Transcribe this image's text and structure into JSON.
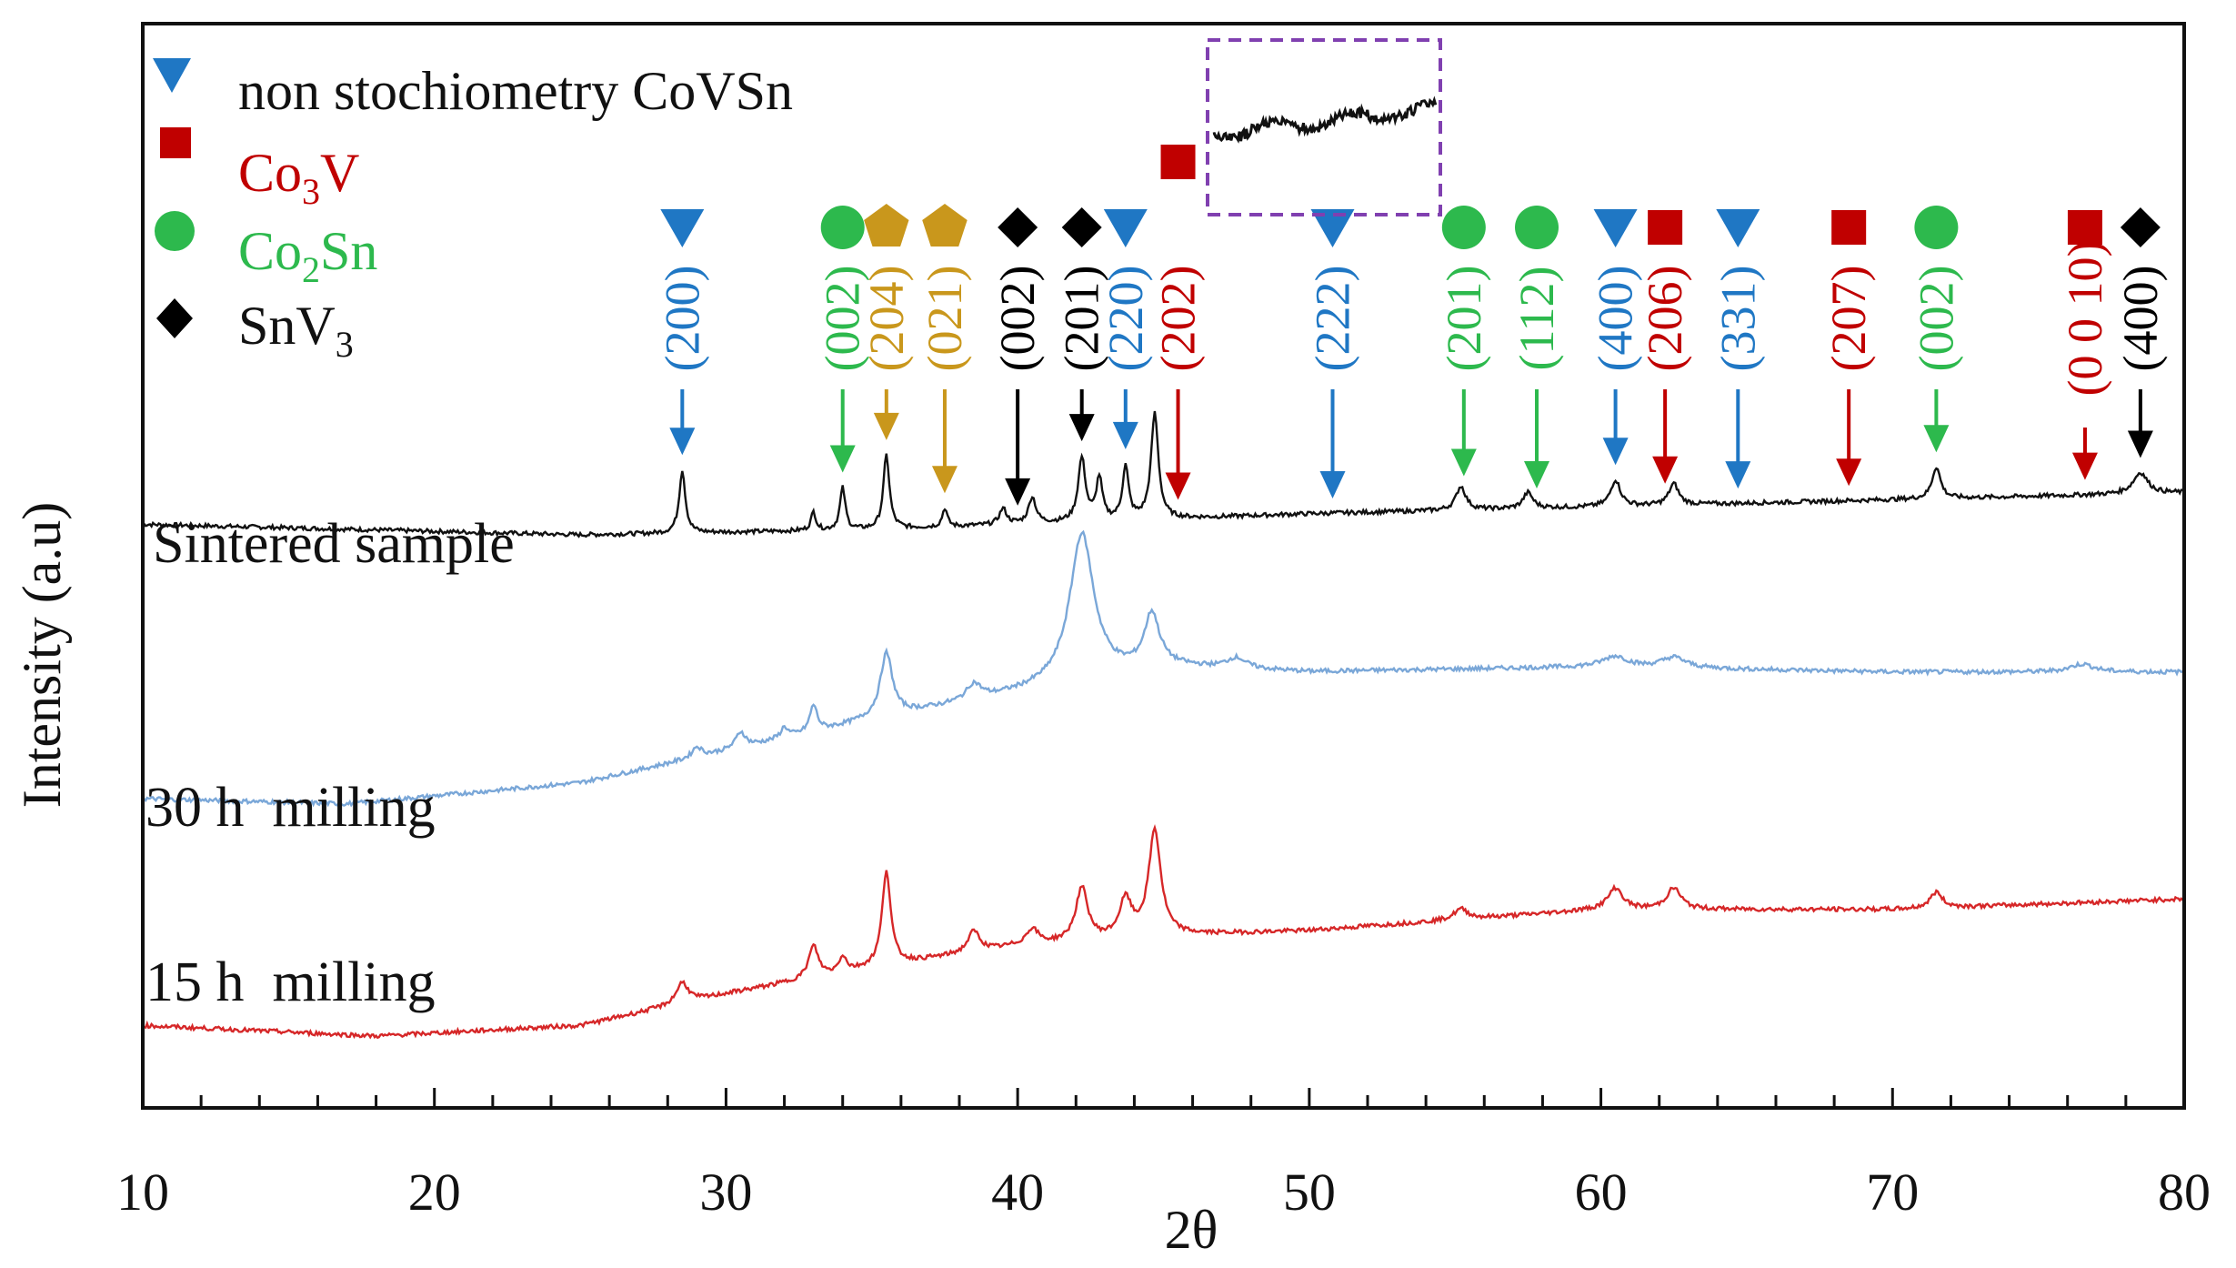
{
  "chart_data": {
    "type": "line",
    "title": "",
    "xlabel": "2θ",
    "ylabel": "Intensity (a.u)",
    "xlim": [
      10,
      80
    ],
    "xticks": [
      "10",
      "20",
      "30",
      "40",
      "50",
      "60",
      "70",
      "80"
    ],
    "grid": false,
    "legend_position": "top-left",
    "legend": [
      {
        "text": "non stochiometry CoVSn",
        "marker": "triangle-down",
        "color": "#1f77c4"
      },
      {
        "text_parts": [
          "Co",
          "3",
          "V"
        ],
        "marker": "square",
        "color": "#c00000"
      },
      {
        "text_parts": [
          "Co",
          "2",
          "Sn"
        ],
        "marker": "circle",
        "color": "#2db94d"
      },
      {
        "text_parts": [
          "SnV",
          "3"
        ],
        "marker": "diamond",
        "color": "#000000"
      }
    ],
    "series": [
      {
        "name": "Sintered sample",
        "color": "#111111",
        "baseline": [
          [
            10,
            0.62
          ],
          [
            25,
            0.6
          ],
          [
            35,
            0.61
          ],
          [
            50,
            0.64
          ],
          [
            80,
            0.68
          ]
        ],
        "peaks": [
          [
            28.5,
            0.12,
            0.25
          ],
          [
            33.0,
            0.035,
            0.2
          ],
          [
            34.0,
            0.08,
            0.22
          ],
          [
            35.5,
            0.14,
            0.25
          ],
          [
            37.5,
            0.035,
            0.2
          ],
          [
            39.5,
            0.03,
            0.3
          ],
          [
            40.5,
            0.05,
            0.3
          ],
          [
            42.2,
            0.12,
            0.3
          ],
          [
            42.8,
            0.08,
            0.25
          ],
          [
            43.7,
            0.1,
            0.25
          ],
          [
            44.7,
            0.2,
            0.3
          ],
          [
            55.2,
            0.045,
            0.4
          ],
          [
            57.5,
            0.03,
            0.4
          ],
          [
            60.5,
            0.05,
            0.4
          ],
          [
            62.5,
            0.04,
            0.4
          ],
          [
            71.5,
            0.06,
            0.35
          ],
          [
            78.5,
            0.04,
            0.6
          ]
        ]
      },
      {
        "name": "30 h  milling",
        "color": "#7aa7d8",
        "baseline": [
          [
            10,
            0.1
          ],
          [
            17,
            0.09
          ],
          [
            25,
            0.13
          ],
          [
            30,
            0.19
          ],
          [
            35,
            0.25
          ],
          [
            40,
            0.3
          ],
          [
            45,
            0.35
          ],
          [
            50,
            0.34
          ],
          [
            60,
            0.35
          ],
          [
            70,
            0.34
          ],
          [
            80,
            0.34
          ]
        ],
        "peaks": [
          [
            29.0,
            0.02,
            0.4
          ],
          [
            30.5,
            0.03,
            0.4
          ],
          [
            32.0,
            0.02,
            0.3
          ],
          [
            33.0,
            0.05,
            0.3
          ],
          [
            35.5,
            0.12,
            0.5
          ],
          [
            38.5,
            0.03,
            0.6
          ],
          [
            42.2,
            0.28,
            1.0
          ],
          [
            44.6,
            0.1,
            0.6
          ],
          [
            47.5,
            0.02,
            0.8
          ],
          [
            60.5,
            0.02,
            1.0
          ],
          [
            62.5,
            0.02,
            1.0
          ],
          [
            76.5,
            0.015,
            1.0
          ]
        ]
      },
      {
        "name": "15 h  milling",
        "color": "#d62728",
        "baseline": [
          [
            10,
            -0.33
          ],
          [
            18,
            -0.35
          ],
          [
            25,
            -0.33
          ],
          [
            30,
            -0.27
          ],
          [
            35,
            -0.22
          ],
          [
            40,
            -0.18
          ],
          [
            45,
            -0.16
          ],
          [
            50,
            -0.15
          ],
          [
            60,
            -0.11
          ],
          [
            70,
            -0.11
          ],
          [
            80,
            -0.09
          ]
        ],
        "peaks": [
          [
            28.5,
            0.04,
            0.5
          ],
          [
            33.0,
            0.06,
            0.4
          ],
          [
            34.0,
            0.03,
            0.3
          ],
          [
            35.5,
            0.18,
            0.35
          ],
          [
            38.5,
            0.04,
            0.5
          ],
          [
            40.5,
            0.03,
            0.5
          ],
          [
            42.2,
            0.1,
            0.5
          ],
          [
            43.7,
            0.07,
            0.5
          ],
          [
            44.7,
            0.2,
            0.5
          ],
          [
            55.2,
            0.02,
            0.6
          ],
          [
            60.5,
            0.04,
            0.6
          ],
          [
            62.5,
            0.04,
            0.6
          ],
          [
            71.5,
            0.03,
            0.5
          ]
        ]
      }
    ],
    "peak_annotations": [
      {
        "x": 28.5,
        "label": "(200)",
        "phase": "CoVSn",
        "color": "#1f77c4",
        "marker": "triangle-down"
      },
      {
        "x": 34.0,
        "label": "(002)",
        "phase": "Co2Sn",
        "color": "#2db94d",
        "marker": "circle"
      },
      {
        "x": 35.5,
        "label": "(204)",
        "phase": "unlisted",
        "color": "#c9971c",
        "marker": "pentagon"
      },
      {
        "x": 37.5,
        "label": "(021)",
        "phase": "unlisted",
        "color": "#c9971c",
        "marker": "pentagon"
      },
      {
        "x": 40.0,
        "label": "(002)",
        "phase": "SnV3",
        "color": "#000000",
        "marker": "diamond"
      },
      {
        "x": 42.2,
        "label": "(201)",
        "phase": "SnV3",
        "color": "#000000",
        "marker": "diamond"
      },
      {
        "x": 43.7,
        "label": "(220)",
        "phase": "CoVSn",
        "color": "#1f77c4",
        "marker": "triangle-down"
      },
      {
        "x": 45.5,
        "label": "(202)",
        "phase": "Co3V",
        "color": "#c00000",
        "marker": "square"
      },
      {
        "x": 50.8,
        "label": "(222)",
        "phase": "CoVSn",
        "color": "#1f77c4",
        "marker": "triangle-down"
      },
      {
        "x": 55.3,
        "label": "(201)",
        "phase": "Co2Sn",
        "color": "#2db94d",
        "marker": "circle"
      },
      {
        "x": 57.8,
        "label": "(112)",
        "phase": "Co2Sn",
        "color": "#2db94d",
        "marker": "circle"
      },
      {
        "x": 60.5,
        "label": "(400)",
        "phase": "CoVSn",
        "color": "#1f77c4",
        "marker": "triangle-down"
      },
      {
        "x": 62.2,
        "label": "(206)",
        "phase": "Co3V",
        "color": "#c00000",
        "marker": "square"
      },
      {
        "x": 64.7,
        "label": "(331)",
        "phase": "CoVSn",
        "color": "#1f77c4",
        "marker": "triangle-down"
      },
      {
        "x": 68.5,
        "label": "(207)",
        "phase": "Co3V",
        "color": "#c00000",
        "marker": "square"
      },
      {
        "x": 71.5,
        "label": "(002)",
        "phase": "Co2Sn",
        "color": "#2db94d",
        "marker": "circle"
      },
      {
        "x": 76.6,
        "label": "(0 0 10)",
        "phase": "Co3V",
        "color": "#c00000",
        "marker": "square"
      },
      {
        "x": 78.5,
        "label": "(400)",
        "phase": "SnV3",
        "color": "#000000",
        "marker": "diamond"
      }
    ],
    "inset": {
      "xrange": [
        46.5,
        54.5
      ],
      "style": "dashed box",
      "color": "#8040b0",
      "description_marker_x": 50.8
    }
  }
}
